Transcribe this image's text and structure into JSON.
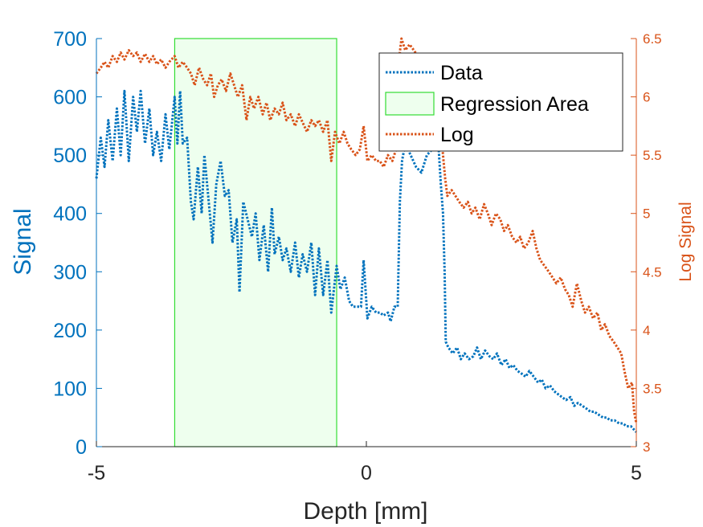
{
  "chart_data": {
    "type": "line",
    "xlabel": "Depth [mm]",
    "ylabel_left": "Signal",
    "ylabel_right": "Log Signal",
    "xlim": [
      -5,
      5
    ],
    "ylim_left": [
      0,
      700
    ],
    "ylim_right": [
      3,
      6.5
    ],
    "xticks": [
      -5,
      0,
      5
    ],
    "yticks_left": [
      0,
      100,
      200,
      300,
      400,
      500,
      600,
      700
    ],
    "yticks_right": [
      3,
      3.5,
      4,
      4.5,
      5,
      5.5,
      6,
      6.5
    ],
    "legend_position": "top-right",
    "regression_area": {
      "x_start": -3.55,
      "x_end": -0.55,
      "fill": "#EEFFEE",
      "edge": "#33DD33"
    },
    "series": [
      {
        "name": "Data",
        "axis": "left",
        "color": "#0072BD",
        "style": "dotted",
        "points": [
          [
            -5.0,
            460
          ],
          [
            -4.92,
            530
          ],
          [
            -4.85,
            480
          ],
          [
            -4.78,
            560
          ],
          [
            -4.7,
            490
          ],
          [
            -4.62,
            580
          ],
          [
            -4.55,
            500
          ],
          [
            -4.48,
            610
          ],
          [
            -4.4,
            490
          ],
          [
            -4.32,
            600
          ],
          [
            -4.25,
            540
          ],
          [
            -4.18,
            610
          ],
          [
            -4.1,
            520
          ],
          [
            -4.02,
            580
          ],
          [
            -3.95,
            500
          ],
          [
            -3.88,
            540
          ],
          [
            -3.8,
            490
          ],
          [
            -3.72,
            570
          ],
          [
            -3.65,
            510
          ],
          [
            -3.55,
            600
          ],
          [
            -3.5,
            520
          ],
          [
            -3.45,
            610
          ],
          [
            -3.4,
            520
          ],
          [
            -3.32,
            530
          ],
          [
            -3.25,
            420
          ],
          [
            -3.2,
            390
          ],
          [
            -3.12,
            480
          ],
          [
            -3.05,
            400
          ],
          [
            -3.0,
            500
          ],
          [
            -2.92,
            420
          ],
          [
            -2.85,
            350
          ],
          [
            -2.78,
            450
          ],
          [
            -2.7,
            490
          ],
          [
            -2.62,
            430
          ],
          [
            -2.55,
            440
          ],
          [
            -2.48,
            350
          ],
          [
            -2.4,
            390
          ],
          [
            -2.35,
            265
          ],
          [
            -2.28,
            420
          ],
          [
            -2.2,
            390
          ],
          [
            -2.12,
            360
          ],
          [
            -2.05,
            400
          ],
          [
            -1.98,
            320
          ],
          [
            -1.9,
            380
          ],
          [
            -1.82,
            300
          ],
          [
            -1.75,
            410
          ],
          [
            -1.7,
            330
          ],
          [
            -1.62,
            360
          ],
          [
            -1.55,
            320
          ],
          [
            -1.48,
            340
          ],
          [
            -1.4,
            300
          ],
          [
            -1.32,
            350
          ],
          [
            -1.25,
            290
          ],
          [
            -1.18,
            330
          ],
          [
            -1.1,
            300
          ],
          [
            -1.02,
            350
          ],
          [
            -0.95,
            260
          ],
          [
            -0.88,
            340
          ],
          [
            -0.8,
            260
          ],
          [
            -0.72,
            320
          ],
          [
            -0.65,
            230
          ],
          [
            -0.55,
            310
          ],
          [
            -0.48,
            270
          ],
          [
            -0.4,
            290
          ],
          [
            -0.32,
            250
          ],
          [
            -0.25,
            240
          ],
          [
            -0.18,
            240
          ],
          [
            -0.1,
            240
          ],
          [
            -0.05,
            320
          ],
          [
            0.02,
            220
          ],
          [
            0.1,
            240
          ],
          [
            0.18,
            230
          ],
          [
            0.25,
            230
          ],
          [
            0.32,
            225
          ],
          [
            0.4,
            230
          ],
          [
            0.45,
            215
          ],
          [
            0.52,
            240
          ],
          [
            0.58,
            240
          ],
          [
            0.62,
            420
          ],
          [
            0.66,
            490
          ],
          [
            0.72,
            520
          ],
          [
            0.82,
            500
          ],
          [
            0.92,
            480
          ],
          [
            1.02,
            470
          ],
          [
            1.12,
            500
          ],
          [
            1.22,
            510
          ],
          [
            1.32,
            540
          ],
          [
            1.38,
            450
          ],
          [
            1.42,
            400
          ],
          [
            1.45,
            300
          ],
          [
            1.47,
            180
          ],
          [
            1.52,
            170
          ],
          [
            1.6,
            160
          ],
          [
            1.68,
            170
          ],
          [
            1.75,
            150
          ],
          [
            1.82,
            160
          ],
          [
            1.9,
            150
          ],
          [
            1.98,
            155
          ],
          [
            2.05,
            170
          ],
          [
            2.12,
            150
          ],
          [
            2.2,
            165
          ],
          [
            2.28,
            155
          ],
          [
            2.35,
            150
          ],
          [
            2.42,
            160
          ],
          [
            2.5,
            140
          ],
          [
            2.58,
            150
          ],
          [
            2.65,
            135
          ],
          [
            2.72,
            140
          ],
          [
            2.8,
            130
          ],
          [
            2.88,
            125
          ],
          [
            2.95,
            120
          ],
          [
            3.02,
            130
          ],
          [
            3.1,
            120
          ],
          [
            3.18,
            110
          ],
          [
            3.25,
            115
          ],
          [
            3.32,
            100
          ],
          [
            3.4,
            105
          ],
          [
            3.48,
            95
          ],
          [
            3.55,
            90
          ],
          [
            3.62,
            85
          ],
          [
            3.7,
            80
          ],
          [
            3.78,
            85
          ],
          [
            3.85,
            70
          ],
          [
            3.92,
            75
          ],
          [
            4.0,
            70
          ],
          [
            4.08,
            65
          ],
          [
            4.15,
            60
          ],
          [
            4.22,
            60
          ],
          [
            4.3,
            55
          ],
          [
            4.38,
            50
          ],
          [
            4.45,
            50
          ],
          [
            4.52,
            45
          ],
          [
            4.6,
            45
          ],
          [
            4.68,
            40
          ],
          [
            4.75,
            40
          ],
          [
            4.82,
            35
          ],
          [
            4.9,
            35
          ],
          [
            4.95,
            30
          ],
          [
            5.0,
            25
          ]
        ]
      },
      {
        "name": "Log",
        "axis": "right",
        "color": "#D95319",
        "style": "dotted",
        "points": [
          [
            -5.0,
            6.2
          ],
          [
            -4.92,
            6.25
          ],
          [
            -4.85,
            6.3
          ],
          [
            -4.78,
            6.25
          ],
          [
            -4.7,
            6.35
          ],
          [
            -4.62,
            6.3
          ],
          [
            -4.55,
            6.38
          ],
          [
            -4.48,
            6.32
          ],
          [
            -4.4,
            6.4
          ],
          [
            -4.32,
            6.35
          ],
          [
            -4.25,
            6.38
          ],
          [
            -4.18,
            6.3
          ],
          [
            -4.1,
            6.37
          ],
          [
            -4.02,
            6.3
          ],
          [
            -3.95,
            6.35
          ],
          [
            -3.88,
            6.28
          ],
          [
            -3.8,
            6.32
          ],
          [
            -3.72,
            6.25
          ],
          [
            -3.65,
            6.3
          ],
          [
            -3.55,
            6.35
          ],
          [
            -3.48,
            6.25
          ],
          [
            -3.4,
            6.3
          ],
          [
            -3.32,
            6.25
          ],
          [
            -3.25,
            6.2
          ],
          [
            -3.18,
            6.1
          ],
          [
            -3.1,
            6.25
          ],
          [
            -3.02,
            6.15
          ],
          [
            -2.95,
            6.1
          ],
          [
            -2.88,
            6.2
          ],
          [
            -2.82,
            6.0
          ],
          [
            -2.75,
            6.1
          ],
          [
            -2.68,
            6.15
          ],
          [
            -2.6,
            6.05
          ],
          [
            -2.52,
            6.2
          ],
          [
            -2.45,
            6.1
          ],
          [
            -2.38,
            6.0
          ],
          [
            -2.3,
            6.1
          ],
          [
            -2.22,
            5.8
          ],
          [
            -2.15,
            6.0
          ],
          [
            -2.08,
            5.9
          ],
          [
            -2.0,
            6.0
          ],
          [
            -1.92,
            5.85
          ],
          [
            -1.85,
            5.95
          ],
          [
            -1.78,
            5.8
          ],
          [
            -1.7,
            5.9
          ],
          [
            -1.62,
            5.85
          ],
          [
            -1.55,
            5.95
          ],
          [
            -1.48,
            5.8
          ],
          [
            -1.4,
            5.85
          ],
          [
            -1.32,
            5.75
          ],
          [
            -1.25,
            5.85
          ],
          [
            -1.18,
            5.78
          ],
          [
            -1.1,
            5.7
          ],
          [
            -1.02,
            5.8
          ],
          [
            -0.95,
            5.75
          ],
          [
            -0.88,
            5.8
          ],
          [
            -0.8,
            5.7
          ],
          [
            -0.72,
            5.8
          ],
          [
            -0.65,
            5.45
          ],
          [
            -0.58,
            5.7
          ],
          [
            -0.5,
            5.6
          ],
          [
            -0.42,
            5.7
          ],
          [
            -0.35,
            5.6
          ],
          [
            -0.28,
            5.55
          ],
          [
            -0.2,
            5.5
          ],
          [
            -0.12,
            5.55
          ],
          [
            -0.05,
            5.75
          ],
          [
            0.02,
            5.45
          ],
          [
            0.1,
            5.5
          ],
          [
            0.18,
            5.45
          ],
          [
            0.25,
            5.45
          ],
          [
            0.32,
            5.4
          ],
          [
            0.4,
            5.5
          ],
          [
            0.48,
            5.45
          ],
          [
            0.55,
            5.55
          ],
          [
            0.6,
            6.3
          ],
          [
            0.65,
            6.5
          ],
          [
            0.72,
            6.4
          ],
          [
            0.8,
            6.45
          ],
          [
            0.88,
            6.4
          ],
          [
            0.95,
            6.35
          ],
          [
            1.02,
            6.3
          ],
          [
            1.1,
            6.25
          ],
          [
            1.18,
            6.2
          ],
          [
            1.25,
            6.0
          ],
          [
            1.32,
            6.1
          ],
          [
            1.38,
            5.75
          ],
          [
            1.42,
            5.5
          ],
          [
            1.46,
            5.3
          ],
          [
            1.5,
            5.15
          ],
          [
            1.58,
            5.2
          ],
          [
            1.65,
            5.15
          ],
          [
            1.72,
            5.1
          ],
          [
            1.8,
            5.05
          ],
          [
            1.88,
            5.1
          ],
          [
            1.95,
            5.0
          ],
          [
            2.02,
            5.05
          ],
          [
            2.1,
            4.95
          ],
          [
            2.18,
            5.08
          ],
          [
            2.25,
            5.0
          ],
          [
            2.32,
            4.9
          ],
          [
            2.4,
            5.0
          ],
          [
            2.48,
            4.95
          ],
          [
            2.55,
            4.85
          ],
          [
            2.62,
            4.9
          ],
          [
            2.7,
            4.8
          ],
          [
            2.78,
            4.75
          ],
          [
            2.85,
            4.8
          ],
          [
            2.92,
            4.7
          ],
          [
            3.0,
            4.75
          ],
          [
            3.08,
            4.85
          ],
          [
            3.15,
            4.7
          ],
          [
            3.22,
            4.6
          ],
          [
            3.3,
            4.55
          ],
          [
            3.38,
            4.5
          ],
          [
            3.45,
            4.45
          ],
          [
            3.52,
            4.4
          ],
          [
            3.6,
            4.45
          ],
          [
            3.68,
            4.35
          ],
          [
            3.75,
            4.3
          ],
          [
            3.82,
            4.2
          ],
          [
            3.9,
            4.4
          ],
          [
            3.98,
            4.25
          ],
          [
            4.05,
            4.15
          ],
          [
            4.12,
            4.2
          ],
          [
            4.2,
            4.1
          ],
          [
            4.28,
            4.15
          ],
          [
            4.35,
            4.0
          ],
          [
            4.42,
            4.05
          ],
          [
            4.5,
            3.95
          ],
          [
            4.58,
            3.9
          ],
          [
            4.65,
            3.85
          ],
          [
            4.72,
            3.8
          ],
          [
            4.78,
            3.65
          ],
          [
            4.85,
            3.5
          ],
          [
            4.92,
            3.55
          ],
          [
            4.96,
            3.3
          ],
          [
            5.0,
            3.2
          ]
        ]
      }
    ],
    "legend": {
      "entries": [
        {
          "label": "Data",
          "type": "line",
          "color": "#0072BD"
        },
        {
          "label": "Regression Area",
          "type": "patch",
          "fill": "#EEFFEE",
          "edge": "#33DD33"
        },
        {
          "label": "Log",
          "type": "line",
          "color": "#D95319"
        }
      ]
    }
  }
}
